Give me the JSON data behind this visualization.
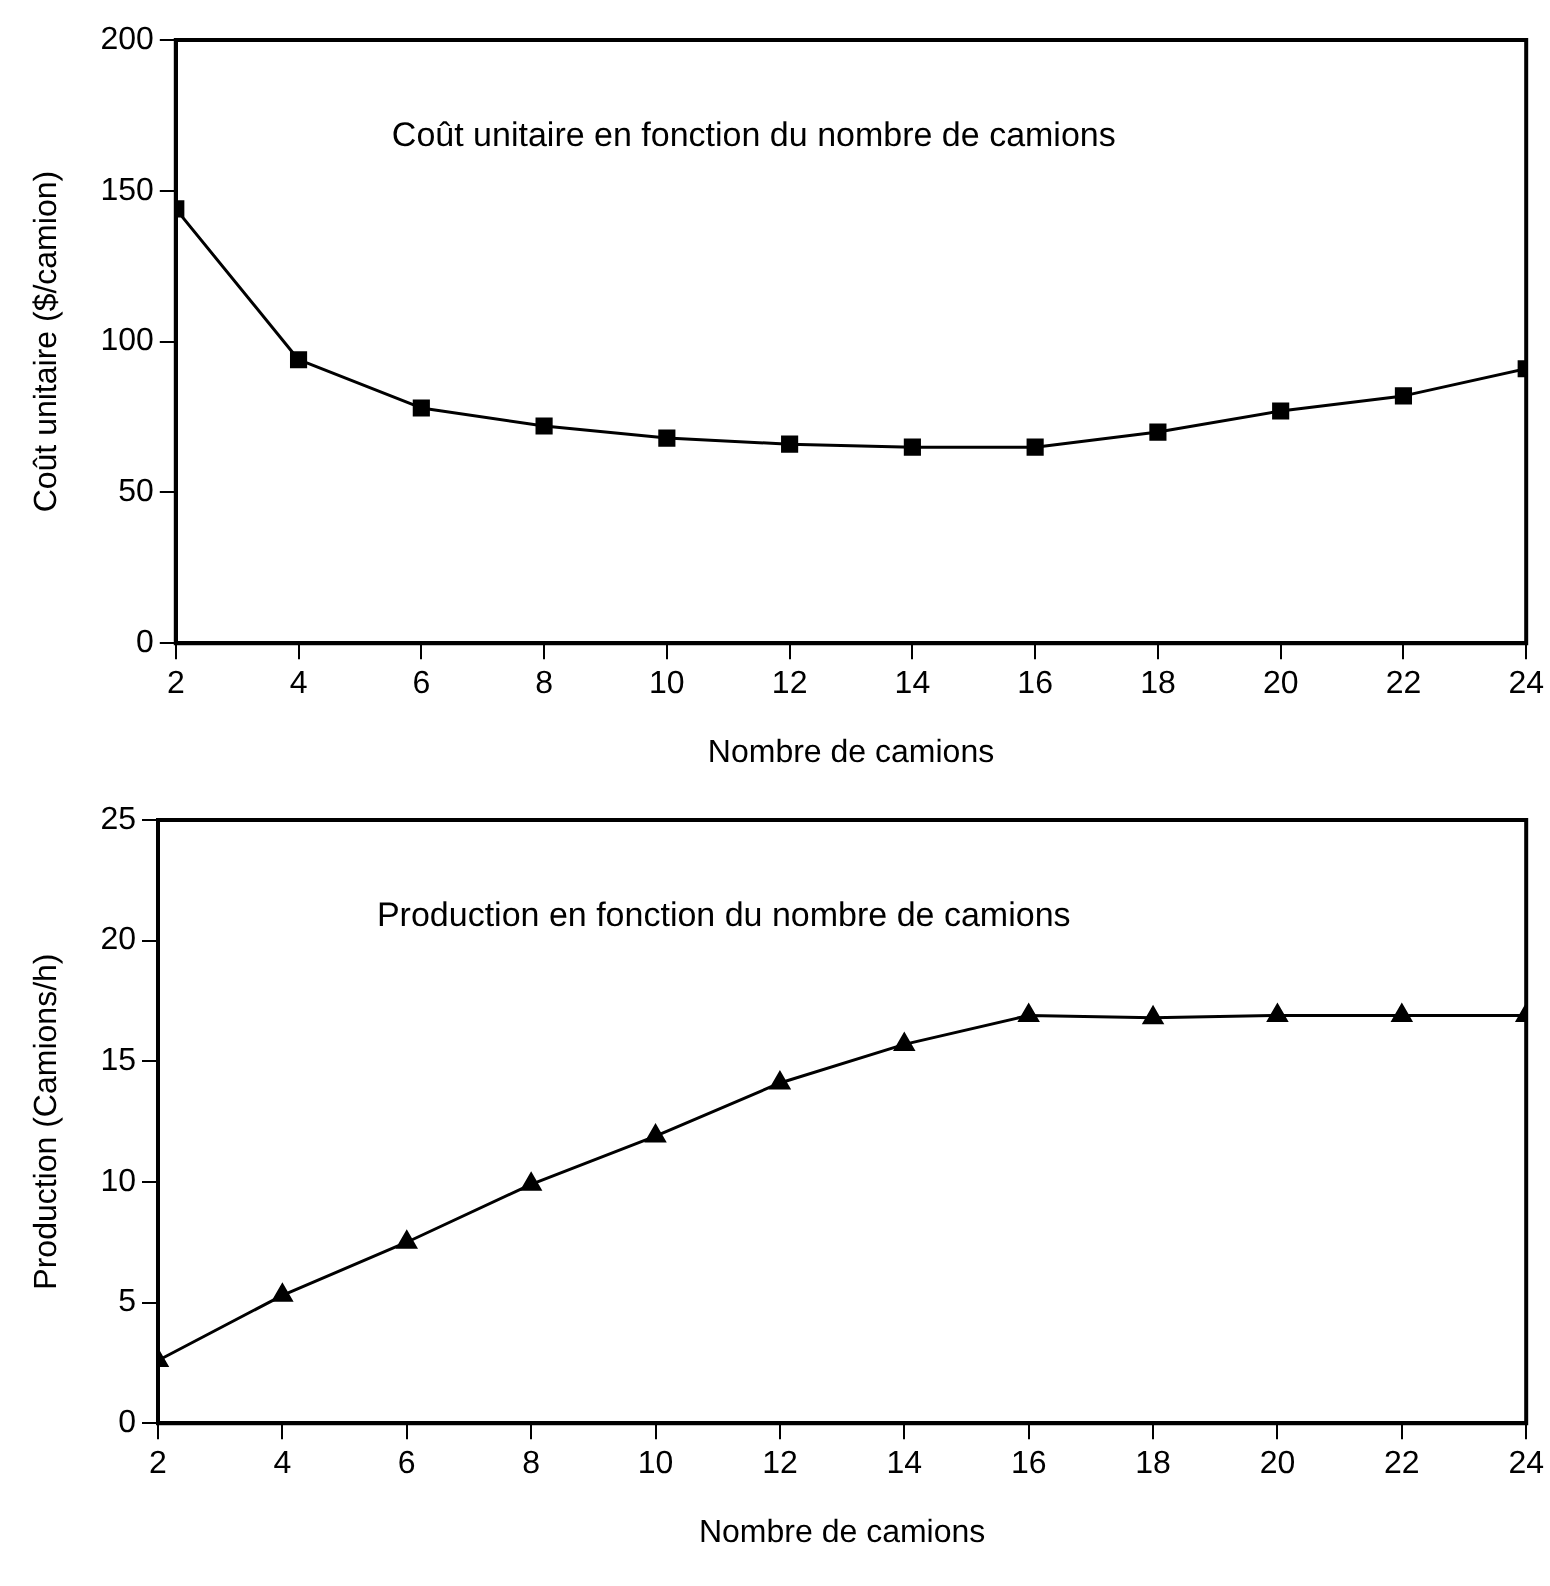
{
  "chart_data": [
    {
      "type": "line",
      "title": "Coût unitaire en fonction du nombre de camions",
      "xlabel": "Nombre de camions",
      "ylabel": "Coût unitaire ($/camion)",
      "x": [
        2,
        4,
        6,
        8,
        10,
        12,
        14,
        16,
        18,
        20,
        22,
        24
      ],
      "series": [
        {
          "color": "#000000",
          "marker": "square",
          "values": [
            144,
            94,
            78,
            72,
            68,
            66,
            65,
            65,
            70,
            77,
            82,
            91
          ]
        }
      ],
      "xlim": [
        2,
        24
      ],
      "xticks": [
        2,
        4,
        6,
        8,
        10,
        12,
        14,
        16,
        18,
        20,
        22,
        24
      ],
      "ylim": [
        0,
        200
      ],
      "yticks": [
        0,
        50,
        100,
        150,
        200
      ],
      "grid": false,
      "legend": false
    },
    {
      "type": "line",
      "title": "Production en fonction du nombre de camions",
      "xlabel": "Nombre de camions",
      "ylabel": "Production (Camions/h)",
      "x": [
        2,
        4,
        6,
        8,
        10,
        12,
        14,
        16,
        18,
        20,
        22,
        24
      ],
      "series": [
        {
          "color": "#000000",
          "marker": "triangle",
          "values": [
            2.6,
            5.3,
            7.5,
            9.9,
            11.9,
            14.1,
            15.7,
            16.9,
            16.8,
            16.9,
            16.9,
            16.9
          ]
        }
      ],
      "xlim": [
        2,
        24
      ],
      "xticks": [
        2,
        4,
        6,
        8,
        10,
        12,
        14,
        16,
        18,
        20,
        22,
        24
      ],
      "ylim": [
        0,
        25
      ],
      "yticks": [
        0,
        5,
        10,
        15,
        20,
        25
      ],
      "grid": false,
      "legend": false
    }
  ]
}
